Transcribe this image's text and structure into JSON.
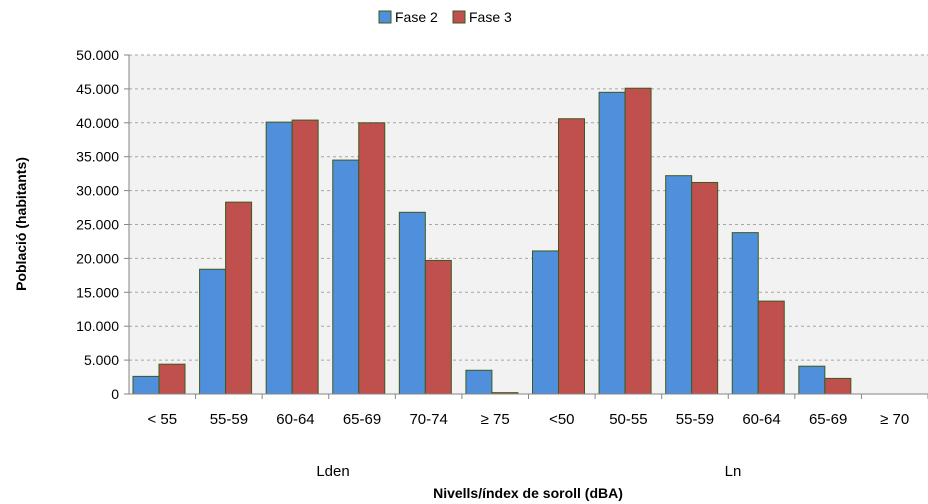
{
  "chart_data": {
    "type": "bar",
    "categories": [
      "< 55",
      "55-59",
      "60-64",
      "65-69",
      "70-74",
      "≥ 75",
      "<50",
      "50-55",
      "55-59",
      "60-64",
      "65-69",
      "≥ 70"
    ],
    "group_labels": [
      "Lden",
      "Ln"
    ],
    "series": [
      {
        "name": "Fase 2",
        "color": "#4f8fdc",
        "values": [
          2600,
          18400,
          40100,
          34500,
          26800,
          3500,
          21100,
          44500,
          32200,
          23800,
          4100,
          0
        ]
      },
      {
        "name": "Fase 3",
        "color": "#c0504d",
        "values": [
          4400,
          28300,
          40400,
          40000,
          19700,
          200,
          40600,
          45100,
          31200,
          13700,
          2300,
          0
        ]
      }
    ],
    "title": "",
    "xlabel": "Nivells/índex de soroll (dBA)",
    "ylabel": "Població (habitants)",
    "ylim": [
      0,
      50000
    ],
    "yticks": [
      "0",
      "5.000",
      "10.000",
      "15.000",
      "20.000",
      "25.000",
      "30.000",
      "35.000",
      "40.000",
      "45.000",
      "50.000"
    ],
    "grid": true,
    "legend": "top-center",
    "bar_border_color": "#3c5a1e",
    "plot_background": "#f2f2f2"
  }
}
